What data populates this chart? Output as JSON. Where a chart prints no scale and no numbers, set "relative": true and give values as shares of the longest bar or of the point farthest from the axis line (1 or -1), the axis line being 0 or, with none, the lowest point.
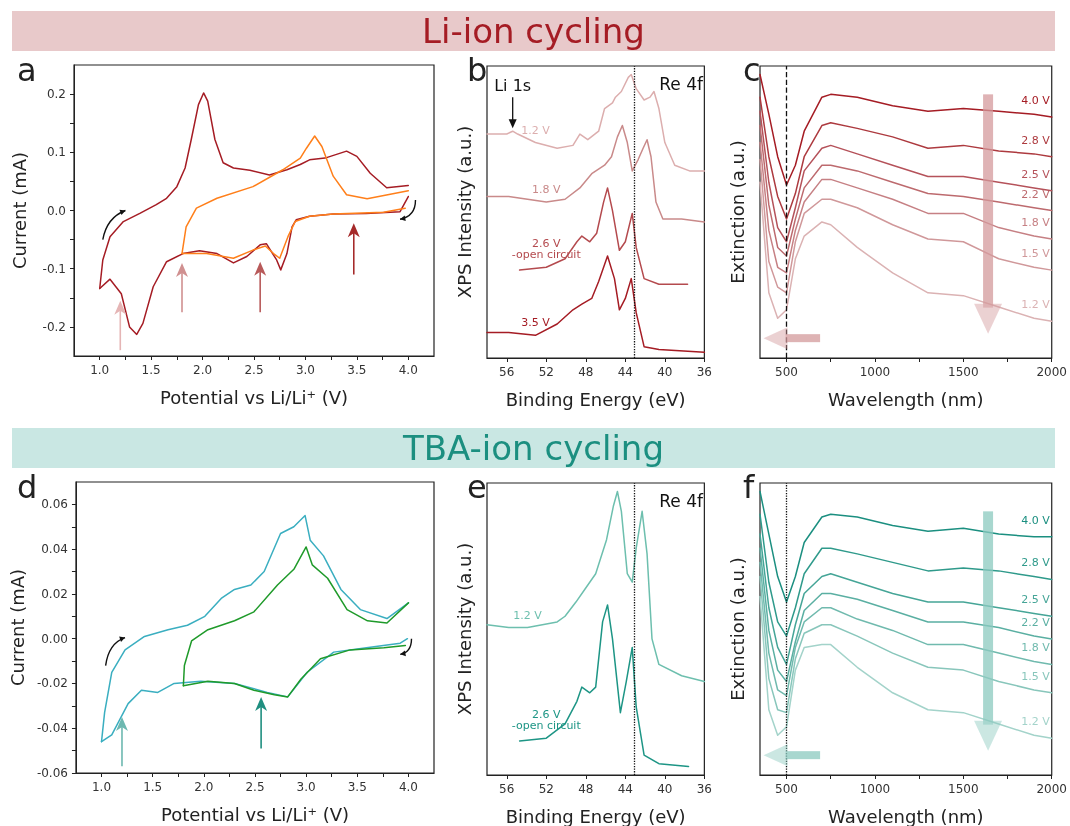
{
  "chart_data": [
    {
      "type": "line",
      "title": "a",
      "annotations": [
        "Li-ion cycling"
      ],
      "xlabel": "Potential vs Li/Li⁺ (V)",
      "ylabel": "Current (mA)",
      "xlim": [
        0.75,
        4.25
      ],
      "xticks": [
        {
          "value": 1,
          "label": "1.0"
        },
        {
          "value": 1.25,
          "label": null
        },
        1.5,
        {
          "value": 1.75,
          "label": null
        },
        {
          "value": 2,
          "label": "2.0"
        },
        {
          "value": 2.25,
          "label": null
        },
        2.5,
        {
          "value": 2.75,
          "label": null
        },
        {
          "value": 3,
          "label": "3.0"
        },
        {
          "value": 3.25,
          "label": null
        },
        3.5,
        {
          "value": 3.75,
          "label": null
        },
        {
          "value": 4,
          "label": "4.0"
        }
      ],
      "ylim": [
        -0.25,
        0.25
      ],
      "yticks": [
        -0.2,
        {
          "value": -0.15,
          "label": null
        },
        -0.1,
        {
          "value": -0.05,
          "label": null
        },
        {
          "value": 0,
          "label": "0.0"
        },
        {
          "value": 0.05,
          "label": null
        },
        0.1,
        {
          "value": 0.15,
          "label": null
        },
        0.2
      ],
      "series": [
        {
          "color": "#a51c24",
          "x": [
            1.0,
            1.03,
            1.1,
            1.23,
            1.39,
            1.55,
            1.65,
            1.75,
            1.83,
            1.89,
            1.96,
            2.01,
            2.05,
            2.12,
            2.2,
            2.3,
            2.46,
            2.65,
            2.82,
            2.95,
            3.04,
            3.19,
            3.4,
            3.5,
            3.63,
            3.79,
            4.0
          ],
          "values": [
            -0.134,
            -0.085,
            -0.045,
            -0.019,
            -0.005,
            0.01,
            0.021,
            0.041,
            0.073,
            0.122,
            0.182,
            0.202,
            0.188,
            0.122,
            0.082,
            0.073,
            0.069,
            0.061,
            0.07,
            0.079,
            0.087,
            0.09,
            0.102,
            0.093,
            0.064,
            0.039,
            0.043
          ]
        },
        {
          "color": "#a51c24",
          "x": [
            4.0,
            3.92,
            3.59,
            3.27,
            3.04,
            2.91,
            2.87,
            2.82,
            2.76,
            2.72,
            2.62,
            2.56,
            2.43,
            2.3,
            2.14,
            1.97,
            1.81,
            1.65,
            1.52,
            1.42,
            1.36,
            1.29,
            1.21,
            1.1,
            1.0
          ],
          "values": [
            0.024,
            -0.002,
            -0.005,
            -0.006,
            -0.01,
            -0.016,
            -0.028,
            -0.074,
            -0.102,
            -0.085,
            -0.057,
            -0.059,
            -0.079,
            -0.09,
            -0.074,
            -0.069,
            -0.074,
            -0.088,
            -0.131,
            -0.194,
            -0.213,
            -0.2,
            -0.143,
            -0.118,
            -0.134
          ]
        },
        {
          "color": "#ff7f1a",
          "x": [
            1.8,
            1.84,
            1.94,
            2.14,
            2.49,
            2.78,
            2.95,
            3.01,
            3.09,
            3.16,
            3.27,
            3.4,
            3.6,
            4.0
          ],
          "values": [
            -0.074,
            -0.028,
            0.004,
            0.021,
            0.041,
            0.07,
            0.09,
            0.107,
            0.128,
            0.11,
            0.059,
            0.027,
            0.02,
            0.034
          ]
        },
        {
          "color": "#ff7f1a",
          "x": [
            3.97,
            3.76,
            3.27,
            3.04,
            2.9,
            2.83,
            2.75,
            2.69,
            2.61,
            2.49,
            2.3,
            2.04,
            1.8
          ],
          "values": [
            0.004,
            -0.003,
            -0.006,
            -0.01,
            -0.019,
            -0.045,
            -0.082,
            -0.074,
            -0.061,
            -0.068,
            -0.082,
            -0.074,
            -0.074
          ]
        }
      ]
    },
    {
      "type": "line",
      "title": "b",
      "relative": true,
      "annotations": [
        {
          "text": "Li 1s",
          "x": 55.4,
          "y": 0.8
        },
        "Re 4f"
      ],
      "xlabel": "Binding Energy (eV)",
      "ylabel": "XPS Intensity (a.u.)",
      "xlim": [
        58,
        36
      ],
      "xticks": [
        56,
        52,
        48,
        44,
        40,
        36
      ],
      "ref_lines": [
        {
          "axis": "x",
          "value": 43.1,
          "line_style": "dotted"
        }
      ],
      "series": [
        {
          "name": "1.2 V",
          "color": "#dcaeae",
          "x": [
            58,
            56,
            55.4,
            54.9,
            53.1,
            50.9,
            49.3,
            48.6,
            47.8,
            46.7,
            46.1,
            45.3,
            45,
            44.4,
            43.7,
            43.4,
            42.9,
            42.1,
            41.5,
            41.1,
            40.6,
            40,
            39,
            37.5,
            36
          ],
          "values": [
            0.79,
            0.79,
            0.8,
            0.79,
            0.76,
            0.74,
            0.75,
            0.79,
            0.77,
            0.8,
            0.88,
            0.9,
            0.92,
            0.94,
            0.99,
            1.0,
            0.95,
            0.91,
            0.92,
            0.94,
            0.88,
            0.76,
            0.68,
            0.66,
            0.66
          ]
        },
        {
          "name": "1.8 V",
          "color": "#c98a8a",
          "x": [
            58,
            55.8,
            52,
            50.1,
            48.6,
            47.4,
            46.1,
            45.4,
            44.8,
            44.3,
            43.8,
            43.3,
            42.7,
            42.2,
            41.8,
            41.4,
            40.9,
            40.2,
            38.3,
            36
          ],
          "values": [
            0.57,
            0.57,
            0.55,
            0.56,
            0.6,
            0.65,
            0.68,
            0.71,
            0.78,
            0.82,
            0.76,
            0.66,
            0.7,
            0.74,
            0.77,
            0.71,
            0.55,
            0.49,
            0.49,
            0.48
          ]
        },
        {
          "name": "2.6 V\n-open circuit",
          "color": "#b44a4e",
          "x": [
            54.7,
            52,
            50.1,
            48.9,
            48.4,
            47.6,
            46.9,
            46.2,
            45.8,
            45.3,
            44.6,
            44,
            43.3,
            42.9,
            42.1,
            40.6,
            37.7
          ],
          "values": [
            0.31,
            0.32,
            0.35,
            0.41,
            0.43,
            0.41,
            0.44,
            0.55,
            0.6,
            0.52,
            0.38,
            0.41,
            0.51,
            0.39,
            0.28,
            0.26,
            0.26
          ]
        },
        {
          "name": "3.5 V",
          "color": "#a51c24",
          "x": [
            58,
            55.8,
            53.1,
            50.9,
            49.3,
            48.4,
            47.4,
            46.7,
            45.8,
            45.1,
            44.6,
            44,
            43.4,
            42.9,
            42.1,
            40.6,
            36
          ],
          "values": [
            0.09,
            0.09,
            0.08,
            0.12,
            0.17,
            0.19,
            0.21,
            0.27,
            0.36,
            0.28,
            0.17,
            0.21,
            0.28,
            0.16,
            0.04,
            0.03,
            0.02
          ]
        }
      ]
    },
    {
      "type": "line",
      "title": "c",
      "relative": true,
      "xlabel": "Wavelength (nm)",
      "ylabel": "Extinction (a.u.)",
      "xlim": [
        350,
        2000
      ],
      "xticks": [
        500,
        {
          "value": 750,
          "label": null
        },
        1000,
        {
          "value": 1250,
          "label": null
        },
        1500,
        {
          "value": 1750,
          "label": null
        },
        2000
      ],
      "x": [
        350,
        400,
        450,
        500,
        550,
        600,
        700,
        750,
        900,
        1100,
        1300,
        1500,
        1700,
        1900,
        2000
      ],
      "ref_lines": [
        {
          "axis": "x",
          "value": 500,
          "line_style": "dashed"
        }
      ],
      "series": [
        {
          "name": "4.0 V",
          "color": "#a51c24",
          "values": [
            1.0,
            0.86,
            0.71,
            0.61,
            0.68,
            0.8,
            0.92,
            0.93,
            0.92,
            0.89,
            0.87,
            0.88,
            0.87,
            0.86,
            0.85
          ]
        },
        {
          "name": "2.8 V",
          "color": "#ad3a3f",
          "values": [
            0.92,
            0.71,
            0.57,
            0.49,
            0.58,
            0.71,
            0.82,
            0.83,
            0.81,
            0.78,
            0.74,
            0.75,
            0.73,
            0.72,
            0.71
          ]
        },
        {
          "name": "2.5 V",
          "color": "#b5525a",
          "values": [
            0.87,
            0.62,
            0.46,
            0.41,
            0.53,
            0.66,
            0.74,
            0.75,
            0.72,
            0.68,
            0.64,
            0.64,
            0.62,
            0.6,
            0.59
          ]
        },
        {
          "name": "2.2 V",
          "color": "#bd6a6e",
          "values": [
            0.82,
            0.54,
            0.39,
            0.36,
            0.49,
            0.6,
            0.68,
            0.68,
            0.66,
            0.62,
            0.58,
            0.57,
            0.55,
            0.53,
            0.52
          ]
        },
        {
          "name": "1.8 V",
          "color": "#c68084",
          "values": [
            0.76,
            0.45,
            0.32,
            0.3,
            0.45,
            0.55,
            0.63,
            0.63,
            0.6,
            0.56,
            0.51,
            0.51,
            0.46,
            0.43,
            0.42
          ]
        },
        {
          "name": "1.5 V",
          "color": "#d0989a",
          "values": [
            0.7,
            0.34,
            0.25,
            0.23,
            0.41,
            0.51,
            0.56,
            0.56,
            0.53,
            0.47,
            0.42,
            0.41,
            0.35,
            0.32,
            0.31
          ]
        },
        {
          "name": "1.2 V",
          "color": "#dbb2b3",
          "values": [
            0.62,
            0.23,
            0.14,
            0.17,
            0.35,
            0.43,
            0.48,
            0.47,
            0.39,
            0.3,
            0.23,
            0.22,
            0.18,
            0.14,
            0.13
          ]
        }
      ]
    },
    {
      "type": "line",
      "title": "d",
      "annotations": [
        "TBA-ion cycling"
      ],
      "xlabel": "Potential vs Li/Li⁺ (V)",
      "ylabel": "Current (mA)",
      "xlim": [
        0.75,
        4.25
      ],
      "xticks": [
        {
          "value": 1,
          "label": "1.0"
        },
        {
          "value": 1.25,
          "label": null
        },
        1.5,
        {
          "value": 1.75,
          "label": null
        },
        {
          "value": 2,
          "label": "2.0"
        },
        {
          "value": 2.25,
          "label": null
        },
        2.5,
        {
          "value": 2.75,
          "label": null
        },
        {
          "value": 3,
          "label": "3.0"
        },
        {
          "value": 3.25,
          "label": null
        },
        3.5,
        {
          "value": 3.75,
          "label": null
        },
        {
          "value": 4,
          "label": "4.0"
        }
      ],
      "ylim": [
        -0.06,
        0.07
      ],
      "yticks": [
        -0.06,
        {
          "value": -0.05,
          "label": null
        },
        -0.04,
        {
          "value": -0.03,
          "label": null
        },
        -0.02,
        {
          "value": -0.01,
          "label": null
        },
        {
          "value": 0,
          "label": "0.00"
        },
        {
          "value": 0.01,
          "label": null
        },
        0.02,
        {
          "value": 0.03,
          "label": null
        },
        0.04,
        {
          "value": 0.05,
          "label": null
        },
        0.06
      ],
      "series": [
        {
          "color": "#3aaec0",
          "x": [
            1.0,
            1.03,
            1.1,
            1.23,
            1.42,
            1.65,
            1.84,
            2.01,
            2.17,
            2.3,
            2.46,
            2.59,
            2.75,
            2.88,
            2.99,
            3.04,
            3.17,
            3.34,
            3.53,
            3.79,
            4.0
          ],
          "values": [
            -0.046,
            -0.033,
            -0.015,
            -0.005,
            0.001,
            0.004,
            0.006,
            0.01,
            0.018,
            0.022,
            0.024,
            0.03,
            0.047,
            0.05,
            0.055,
            0.044,
            0.037,
            0.022,
            0.013,
            0.009,
            0.016
          ]
        },
        {
          "color": "#3aaec0",
          "x": [
            3.99,
            3.92,
            3.59,
            3.27,
            3.01,
            2.82,
            2.62,
            2.3,
            1.97,
            1.71,
            1.55,
            1.39,
            1.26,
            1.1,
            1.0
          ],
          "values": [
            0,
            -0.002,
            -0.004,
            -0.006,
            -0.015,
            -0.026,
            -0.024,
            -0.02,
            -0.019,
            -0.02,
            -0.024,
            -0.023,
            -0.029,
            -0.043,
            -0.046
          ]
        },
        {
          "color": "#1f9a2a",
          "x": [
            1.8,
            1.81,
            1.88,
            2.04,
            2.3,
            2.49,
            2.72,
            2.88,
            3.0,
            3.06,
            3.21,
            3.4,
            3.6,
            3.79,
            4.0
          ],
          "values": [
            -0.021,
            -0.012,
            -0.001,
            0.004,
            0.008,
            0.012,
            0.024,
            0.031,
            0.041,
            0.033,
            0.027,
            0.013,
            0.008,
            0.007,
            0.016
          ]
        },
        {
          "color": "#1f9a2a",
          "x": [
            3.97,
            3.76,
            3.43,
            3.14,
            2.95,
            2.82,
            2.69,
            2.49,
            2.3,
            2.04,
            1.8
          ],
          "values": [
            -0.003,
            -0.004,
            -0.005,
            -0.009,
            -0.018,
            -0.026,
            -0.025,
            -0.023,
            -0.02,
            -0.019,
            -0.021
          ]
        }
      ]
    },
    {
      "type": "line",
      "title": "e",
      "relative": true,
      "annotations": [
        "Re 4f"
      ],
      "xlabel": "Binding Energy (eV)",
      "ylabel": "XPS Intensity (a.u.)",
      "xlim": [
        58,
        36
      ],
      "xticks": [
        56,
        52,
        48,
        44,
        40,
        36
      ],
      "ref_lines": [
        {
          "axis": "x",
          "value": 43.1,
          "line_style": "dotted"
        }
      ],
      "series": [
        {
          "name": "1.2 V",
          "color": "#6dbfae",
          "x": [
            58,
            55.8,
            53.9,
            50.9,
            50.1,
            49,
            48.2,
            47,
            45.9,
            45.2,
            44.8,
            44.4,
            43.8,
            43.3,
            42.9,
            42.3,
            41.8,
            41.3,
            40.6,
            38.3,
            36
          ],
          "values": [
            0.53,
            0.52,
            0.52,
            0.54,
            0.56,
            0.61,
            0.65,
            0.71,
            0.83,
            0.95,
            1.0,
            0.93,
            0.71,
            0.68,
            0.8,
            0.93,
            0.78,
            0.48,
            0.39,
            0.35,
            0.33
          ]
        },
        {
          "name": "2.6 V\n-open circuit",
          "color": "#1d9585",
          "x": [
            54.7,
            52,
            50.1,
            48.9,
            48.4,
            47.6,
            47,
            46.3,
            45.8,
            45.3,
            44.5,
            43.9,
            43.3,
            42.9,
            42.1,
            40.6,
            37.6
          ],
          "values": [
            0.12,
            0.13,
            0.18,
            0.26,
            0.31,
            0.29,
            0.31,
            0.54,
            0.6,
            0.48,
            0.22,
            0.33,
            0.45,
            0.24,
            0.07,
            0.04,
            0.03
          ]
        }
      ]
    },
    {
      "type": "line",
      "title": "f",
      "relative": true,
      "xlabel": "Wavelength (nm)",
      "ylabel": "Extinction (a.u.)",
      "xlim": [
        350,
        2000
      ],
      "xticks": [
        500,
        {
          "value": 750,
          "label": null
        },
        1000,
        {
          "value": 1250,
          "label": null
        },
        1500,
        {
          "value": 1750,
          "label": null
        },
        2000
      ],
      "x": [
        350,
        400,
        450,
        500,
        550,
        600,
        700,
        750,
        900,
        1100,
        1300,
        1500,
        1700,
        1900,
        2000
      ],
      "ref_lines": [
        {
          "axis": "x",
          "value": 500,
          "line_style": "dotted"
        }
      ],
      "series": [
        {
          "name": "4.0 V",
          "color": "#1b8f80",
          "values": [
            1.0,
            0.85,
            0.7,
            0.61,
            0.7,
            0.82,
            0.91,
            0.92,
            0.91,
            0.88,
            0.86,
            0.87,
            0.85,
            0.84,
            0.84
          ]
        },
        {
          "name": "2.8 V",
          "color": "#2f9a8b",
          "values": [
            0.92,
            0.68,
            0.54,
            0.49,
            0.59,
            0.71,
            0.8,
            0.8,
            0.78,
            0.75,
            0.72,
            0.73,
            0.72,
            0.7,
            0.69
          ]
        },
        {
          "name": "2.5 V",
          "color": "#45a597",
          "values": [
            0.85,
            0.59,
            0.45,
            0.39,
            0.53,
            0.64,
            0.7,
            0.71,
            0.68,
            0.64,
            0.61,
            0.61,
            0.59,
            0.57,
            0.56
          ]
        },
        {
          "name": "2.2 V",
          "color": "#5aafa2",
          "values": [
            0.8,
            0.51,
            0.37,
            0.33,
            0.47,
            0.58,
            0.64,
            0.64,
            0.62,
            0.58,
            0.54,
            0.54,
            0.52,
            0.49,
            0.48
          ]
        },
        {
          "name": "1.8 V",
          "color": "#70baae",
          "values": [
            0.75,
            0.43,
            0.3,
            0.28,
            0.45,
            0.54,
            0.59,
            0.59,
            0.55,
            0.51,
            0.46,
            0.46,
            0.43,
            0.4,
            0.39
          ]
        },
        {
          "name": "1.5 V",
          "color": "#88c6bb",
          "values": [
            0.7,
            0.34,
            0.23,
            0.22,
            0.41,
            0.5,
            0.53,
            0.53,
            0.49,
            0.43,
            0.38,
            0.37,
            0.33,
            0.3,
            0.29
          ]
        },
        {
          "name": "1.2 V",
          "color": "#a3d3ca",
          "values": [
            0.63,
            0.23,
            0.14,
            0.17,
            0.37,
            0.45,
            0.46,
            0.46,
            0.38,
            0.29,
            0.23,
            0.22,
            0.18,
            0.14,
            0.13
          ]
        }
      ]
    }
  ]
}
